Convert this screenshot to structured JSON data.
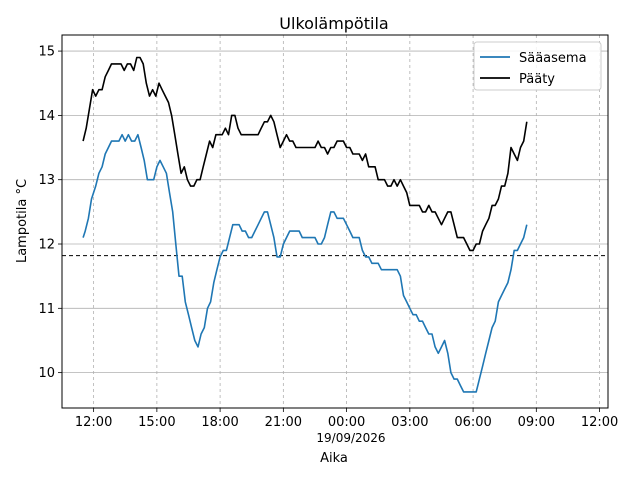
{
  "chart_data": {
    "type": "line",
    "title": "Ulkolämpötila",
    "xlabel": "Aika",
    "ylabel": "Lampotila °C",
    "date_label": "19/09/2026",
    "x_unit": "hours from 18/09/2026 00:00",
    "xlim": [
      10.5,
      36.4
    ],
    "ylim": [
      9.45,
      15.25
    ],
    "x_ticks": [
      {
        "value": 12,
        "label": "12:00"
      },
      {
        "value": 15,
        "label": "15:00"
      },
      {
        "value": 18,
        "label": "18:00"
      },
      {
        "value": 21,
        "label": "21:00"
      },
      {
        "value": 24,
        "label": "00:00"
      },
      {
        "value": 27,
        "label": "03:00"
      },
      {
        "value": 30,
        "label": "06:00"
      },
      {
        "value": 33,
        "label": "09:00"
      },
      {
        "value": 36,
        "label": "12:00"
      }
    ],
    "y_ticks": [
      10,
      11,
      12,
      13,
      14,
      15
    ],
    "grid": {
      "horizontal": "solid",
      "vertical": "dashed"
    },
    "legend_position": "top-right",
    "reference_line": {
      "y": 11.82,
      "style": "dashed"
    },
    "series": [
      {
        "name": "Sääasema",
        "color": "#1f77b4",
        "points": [
          [
            11.5,
            12.1
          ],
          [
            11.6,
            12.2
          ],
          [
            11.75,
            12.4
          ],
          [
            11.9,
            12.7
          ],
          [
            12.1,
            12.9
          ],
          [
            12.25,
            13.1
          ],
          [
            12.4,
            13.2
          ],
          [
            12.55,
            13.4
          ],
          [
            12.7,
            13.5
          ],
          [
            12.85,
            13.6
          ],
          [
            13.2,
            13.6
          ],
          [
            13.35,
            13.7
          ],
          [
            13.5,
            13.6
          ],
          [
            13.65,
            13.7
          ],
          [
            13.8,
            13.6
          ],
          [
            13.95,
            13.6
          ],
          [
            14.1,
            13.7
          ],
          [
            14.25,
            13.5
          ],
          [
            14.4,
            13.3
          ],
          [
            14.55,
            13.0
          ],
          [
            14.85,
            13.0
          ],
          [
            15.0,
            13.2
          ],
          [
            15.15,
            13.3
          ],
          [
            15.3,
            13.2
          ],
          [
            15.45,
            13.1
          ],
          [
            15.6,
            12.8
          ],
          [
            15.75,
            12.5
          ],
          [
            15.9,
            12.0
          ],
          [
            16.05,
            11.5
          ],
          [
            16.2,
            11.5
          ],
          [
            16.35,
            11.1
          ],
          [
            16.5,
            10.9
          ],
          [
            16.65,
            10.7
          ],
          [
            16.8,
            10.5
          ],
          [
            16.95,
            10.4
          ],
          [
            17.1,
            10.6
          ],
          [
            17.25,
            10.7
          ],
          [
            17.4,
            11.0
          ],
          [
            17.55,
            11.1
          ],
          [
            17.7,
            11.4
          ],
          [
            17.85,
            11.6
          ],
          [
            18.0,
            11.8
          ],
          [
            18.15,
            11.9
          ],
          [
            18.3,
            11.9
          ],
          [
            18.45,
            12.1
          ],
          [
            18.6,
            12.3
          ],
          [
            18.9,
            12.3
          ],
          [
            19.05,
            12.2
          ],
          [
            19.2,
            12.2
          ],
          [
            19.35,
            12.1
          ],
          [
            19.5,
            12.1
          ],
          [
            19.65,
            12.2
          ],
          [
            19.8,
            12.3
          ],
          [
            19.95,
            12.4
          ],
          [
            20.1,
            12.5
          ],
          [
            20.25,
            12.5
          ],
          [
            20.4,
            12.3
          ],
          [
            20.55,
            12.1
          ],
          [
            20.7,
            11.8
          ],
          [
            20.85,
            11.8
          ],
          [
            21.0,
            12.0
          ],
          [
            21.15,
            12.1
          ],
          [
            21.3,
            12.2
          ],
          [
            21.75,
            12.2
          ],
          [
            21.9,
            12.1
          ],
          [
            22.5,
            12.1
          ],
          [
            22.65,
            12.0
          ],
          [
            22.8,
            12.0
          ],
          [
            22.95,
            12.1
          ],
          [
            23.1,
            12.3
          ],
          [
            23.25,
            12.5
          ],
          [
            23.4,
            12.5
          ],
          [
            23.55,
            12.4
          ],
          [
            23.85,
            12.4
          ],
          [
            24.0,
            12.3
          ],
          [
            24.15,
            12.2
          ],
          [
            24.3,
            12.1
          ],
          [
            24.6,
            12.1
          ],
          [
            24.75,
            11.9
          ],
          [
            24.9,
            11.8
          ],
          [
            25.05,
            11.8
          ],
          [
            25.2,
            11.7
          ],
          [
            25.5,
            11.7
          ],
          [
            25.65,
            11.6
          ],
          [
            26.4,
            11.6
          ],
          [
            26.55,
            11.5
          ],
          [
            26.7,
            11.2
          ],
          [
            26.85,
            11.1
          ],
          [
            27.0,
            11.0
          ],
          [
            27.15,
            10.9
          ],
          [
            27.3,
            10.9
          ],
          [
            27.45,
            10.8
          ],
          [
            27.6,
            10.8
          ],
          [
            27.75,
            10.7
          ],
          [
            27.9,
            10.6
          ],
          [
            28.05,
            10.6
          ],
          [
            28.2,
            10.4
          ],
          [
            28.35,
            10.3
          ],
          [
            28.5,
            10.4
          ],
          [
            28.65,
            10.5
          ],
          [
            28.8,
            10.3
          ],
          [
            28.95,
            10.0
          ],
          [
            29.1,
            9.9
          ],
          [
            29.25,
            9.9
          ],
          [
            29.4,
            9.8
          ],
          [
            29.55,
            9.7
          ],
          [
            30.15,
            9.7
          ],
          [
            30.3,
            9.9
          ],
          [
            30.45,
            10.1
          ],
          [
            30.6,
            10.3
          ],
          [
            30.75,
            10.5
          ],
          [
            30.9,
            10.7
          ],
          [
            31.05,
            10.8
          ],
          [
            31.2,
            11.1
          ],
          [
            31.35,
            11.2
          ],
          [
            31.5,
            11.3
          ],
          [
            31.65,
            11.4
          ],
          [
            31.8,
            11.6
          ],
          [
            31.95,
            11.9
          ],
          [
            32.1,
            11.9
          ],
          [
            32.25,
            12.0
          ],
          [
            32.4,
            12.1
          ],
          [
            32.55,
            12.3
          ]
        ]
      },
      {
        "name": "Pääty",
        "color": "#000000",
        "points": [
          [
            11.5,
            13.6
          ],
          [
            11.65,
            13.8
          ],
          [
            11.8,
            14.1
          ],
          [
            11.95,
            14.4
          ],
          [
            12.1,
            14.3
          ],
          [
            12.25,
            14.4
          ],
          [
            12.4,
            14.4
          ],
          [
            12.55,
            14.6
          ],
          [
            12.7,
            14.7
          ],
          [
            12.85,
            14.8
          ],
          [
            13.3,
            14.8
          ],
          [
            13.45,
            14.7
          ],
          [
            13.6,
            14.8
          ],
          [
            13.75,
            14.8
          ],
          [
            13.9,
            14.7
          ],
          [
            14.05,
            14.9
          ],
          [
            14.2,
            14.9
          ],
          [
            14.35,
            14.8
          ],
          [
            14.5,
            14.5
          ],
          [
            14.65,
            14.3
          ],
          [
            14.8,
            14.4
          ],
          [
            14.95,
            14.3
          ],
          [
            15.1,
            14.5
          ],
          [
            15.25,
            14.4
          ],
          [
            15.4,
            14.3
          ],
          [
            15.55,
            14.2
          ],
          [
            15.7,
            14.0
          ],
          [
            15.85,
            13.7
          ],
          [
            16.0,
            13.4
          ],
          [
            16.15,
            13.1
          ],
          [
            16.3,
            13.2
          ],
          [
            16.45,
            13.0
          ],
          [
            16.6,
            12.9
          ],
          [
            16.75,
            12.9
          ],
          [
            16.9,
            13.0
          ],
          [
            17.05,
            13.0
          ],
          [
            17.2,
            13.2
          ],
          [
            17.35,
            13.4
          ],
          [
            17.5,
            13.6
          ],
          [
            17.65,
            13.5
          ],
          [
            17.8,
            13.7
          ],
          [
            18.1,
            13.7
          ],
          [
            18.25,
            13.8
          ],
          [
            18.4,
            13.7
          ],
          [
            18.55,
            14.0
          ],
          [
            18.7,
            14.0
          ],
          [
            18.85,
            13.8
          ],
          [
            19.0,
            13.7
          ],
          [
            19.8,
            13.7
          ],
          [
            19.95,
            13.8
          ],
          [
            20.1,
            13.9
          ],
          [
            20.25,
            13.9
          ],
          [
            20.4,
            14.0
          ],
          [
            20.55,
            13.9
          ],
          [
            20.7,
            13.7
          ],
          [
            20.85,
            13.5
          ],
          [
            21.0,
            13.6
          ],
          [
            21.15,
            13.7
          ],
          [
            21.3,
            13.6
          ],
          [
            21.45,
            13.6
          ],
          [
            21.6,
            13.5
          ],
          [
            22.5,
            13.5
          ],
          [
            22.65,
            13.6
          ],
          [
            22.8,
            13.5
          ],
          [
            22.95,
            13.5
          ],
          [
            23.1,
            13.4
          ],
          [
            23.25,
            13.5
          ],
          [
            23.4,
            13.5
          ],
          [
            23.55,
            13.6
          ],
          [
            23.85,
            13.6
          ],
          [
            24.0,
            13.5
          ],
          [
            24.15,
            13.5
          ],
          [
            24.3,
            13.4
          ],
          [
            24.6,
            13.4
          ],
          [
            24.75,
            13.3
          ],
          [
            24.9,
            13.4
          ],
          [
            25.05,
            13.2
          ],
          [
            25.35,
            13.2
          ],
          [
            25.5,
            13.0
          ],
          [
            25.8,
            13.0
          ],
          [
            25.95,
            12.9
          ],
          [
            26.1,
            12.9
          ],
          [
            26.25,
            13.0
          ],
          [
            26.4,
            12.9
          ],
          [
            26.55,
            13.0
          ],
          [
            26.7,
            12.9
          ],
          [
            26.85,
            12.8
          ],
          [
            27.0,
            12.6
          ],
          [
            27.45,
            12.6
          ],
          [
            27.6,
            12.5
          ],
          [
            27.75,
            12.5
          ],
          [
            27.9,
            12.6
          ],
          [
            28.05,
            12.5
          ],
          [
            28.2,
            12.5
          ],
          [
            28.35,
            12.4
          ],
          [
            28.5,
            12.3
          ],
          [
            28.65,
            12.4
          ],
          [
            28.8,
            12.5
          ],
          [
            28.95,
            12.5
          ],
          [
            29.1,
            12.3
          ],
          [
            29.25,
            12.1
          ],
          [
            29.55,
            12.1
          ],
          [
            29.7,
            12.0
          ],
          [
            29.85,
            11.9
          ],
          [
            30.0,
            11.9
          ],
          [
            30.15,
            12.0
          ],
          [
            30.3,
            12.0
          ],
          [
            30.45,
            12.2
          ],
          [
            30.6,
            12.3
          ],
          [
            30.75,
            12.4
          ],
          [
            30.9,
            12.6
          ],
          [
            31.05,
            12.6
          ],
          [
            31.2,
            12.7
          ],
          [
            31.35,
            12.9
          ],
          [
            31.5,
            12.9
          ],
          [
            31.65,
            13.1
          ],
          [
            31.8,
            13.5
          ],
          [
            31.95,
            13.4
          ],
          [
            32.1,
            13.3
          ],
          [
            32.25,
            13.5
          ],
          [
            32.4,
            13.6
          ],
          [
            32.55,
            13.9
          ]
        ]
      }
    ]
  }
}
